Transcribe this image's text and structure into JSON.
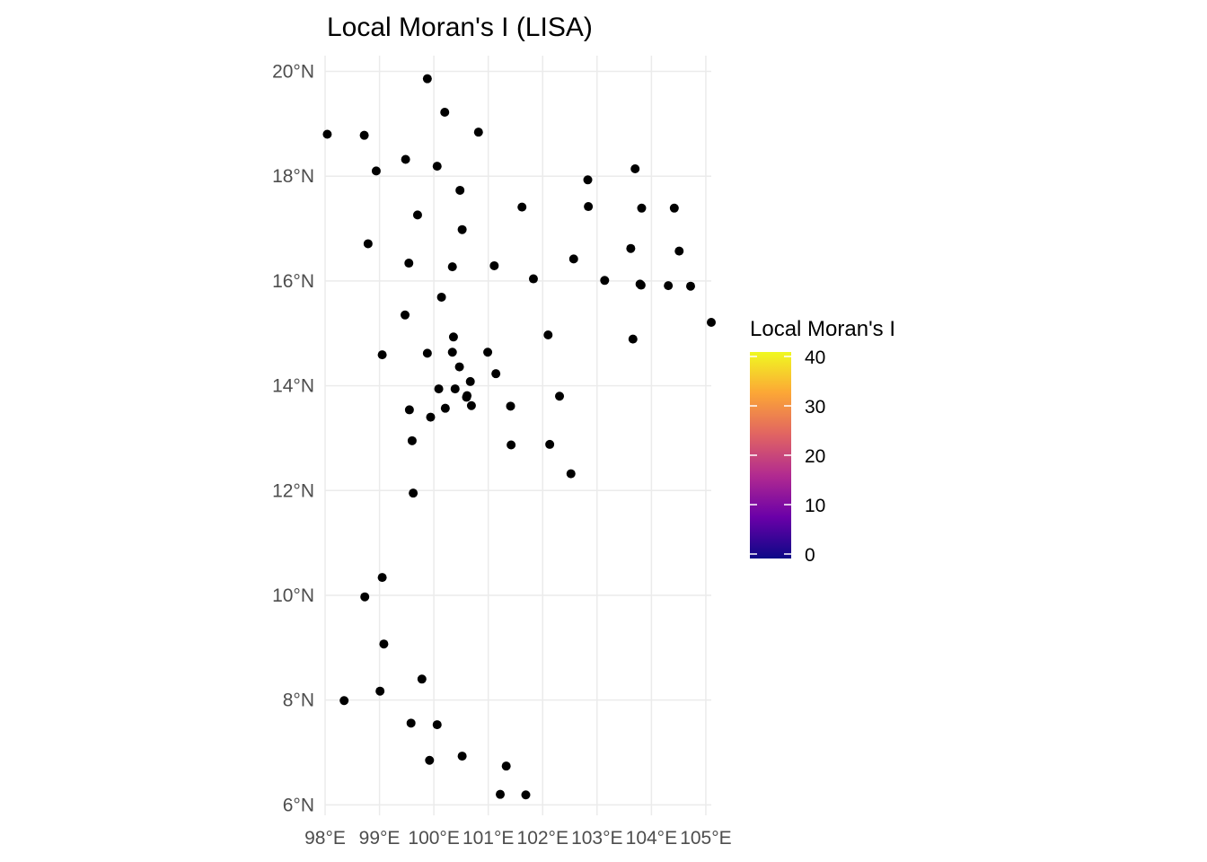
{
  "chart_data": {
    "type": "scatter",
    "title": "Local Moran's I (LISA)",
    "xlabel": "",
    "ylabel": "",
    "xlim": [
      98,
      105.1
    ],
    "ylim": [
      5.8,
      20.3
    ],
    "x_ticks": [
      98,
      99,
      100,
      101,
      102,
      103,
      104,
      105
    ],
    "x_tick_labels": [
      "98°E",
      "99°E",
      "100°E",
      "101°E",
      "102°E",
      "103°E",
      "104°E",
      "105°E"
    ],
    "y_ticks": [
      6,
      8,
      10,
      12,
      14,
      16,
      18,
      20
    ],
    "y_tick_labels": [
      "6°N",
      "8°N",
      "10°N",
      "12°N",
      "14°N",
      "16°N",
      "18°N",
      "20°N"
    ],
    "grid": true,
    "point_color": "#000000",
    "legend": {
      "title": "Local Moran's I",
      "position": "right",
      "min": 0,
      "max": 40,
      "ticks": [
        0,
        10,
        20,
        30,
        40
      ],
      "tick_labels": [
        "0",
        "10",
        "20",
        "30",
        "40"
      ],
      "colors": [
        "#0d0887",
        "#6a00a8",
        "#b12a90",
        "#e16462",
        "#fca636",
        "#f0f921"
      ]
    },
    "points": [
      {
        "x": 98.04,
        "y": 18.8
      },
      {
        "x": 98.72,
        "y": 18.78
      },
      {
        "x": 99.88,
        "y": 19.86
      },
      {
        "x": 100.2,
        "y": 19.22
      },
      {
        "x": 100.82,
        "y": 18.84
      },
      {
        "x": 98.94,
        "y": 18.1
      },
      {
        "x": 99.48,
        "y": 18.32
      },
      {
        "x": 100.06,
        "y": 18.19
      },
      {
        "x": 100.48,
        "y": 17.73
      },
      {
        "x": 99.7,
        "y": 17.26
      },
      {
        "x": 100.52,
        "y": 16.98
      },
      {
        "x": 98.79,
        "y": 16.71
      },
      {
        "x": 99.54,
        "y": 16.34
      },
      {
        "x": 100.34,
        "y": 16.27
      },
      {
        "x": 101.11,
        "y": 16.29
      },
      {
        "x": 101.62,
        "y": 17.41
      },
      {
        "x": 101.83,
        "y": 16.04
      },
      {
        "x": 102.57,
        "y": 16.42
      },
      {
        "x": 102.83,
        "y": 17.93
      },
      {
        "x": 102.84,
        "y": 17.42
      },
      {
        "x": 103.7,
        "y": 18.14
      },
      {
        "x": 103.82,
        "y": 17.39
      },
      {
        "x": 104.42,
        "y": 17.39
      },
      {
        "x": 103.62,
        "y": 16.62
      },
      {
        "x": 104.51,
        "y": 16.57
      },
      {
        "x": 103.14,
        "y": 16.01
      },
      {
        "x": 103.79,
        "y": 15.94
      },
      {
        "x": 103.81,
        "y": 15.92
      },
      {
        "x": 104.31,
        "y": 15.91
      },
      {
        "x": 104.72,
        "y": 15.9
      },
      {
        "x": 105.1,
        "y": 15.21
      },
      {
        "x": 103.66,
        "y": 14.89
      },
      {
        "x": 102.1,
        "y": 14.97
      },
      {
        "x": 100.14,
        "y": 15.69
      },
      {
        "x": 99.47,
        "y": 15.35
      },
      {
        "x": 99.05,
        "y": 14.59
      },
      {
        "x": 99.88,
        "y": 14.62
      },
      {
        "x": 100.36,
        "y": 14.93
      },
      {
        "x": 100.34,
        "y": 14.64
      },
      {
        "x": 100.99,
        "y": 14.64
      },
      {
        "x": 100.47,
        "y": 14.36
      },
      {
        "x": 101.14,
        "y": 14.23
      },
      {
        "x": 100.67,
        "y": 14.08
      },
      {
        "x": 100.09,
        "y": 13.94
      },
      {
        "x": 100.39,
        "y": 13.94
      },
      {
        "x": 100.61,
        "y": 13.81
      },
      {
        "x": 100.6,
        "y": 13.78
      },
      {
        "x": 100.69,
        "y": 13.62
      },
      {
        "x": 100.21,
        "y": 13.57
      },
      {
        "x": 99.55,
        "y": 13.54
      },
      {
        "x": 99.94,
        "y": 13.4
      },
      {
        "x": 101.41,
        "y": 13.61
      },
      {
        "x": 102.31,
        "y": 13.8
      },
      {
        "x": 99.6,
        "y": 12.95
      },
      {
        "x": 101.42,
        "y": 12.87
      },
      {
        "x": 102.13,
        "y": 12.88
      },
      {
        "x": 102.52,
        "y": 12.32
      },
      {
        "x": 99.62,
        "y": 11.95
      },
      {
        "x": 99.05,
        "y": 10.34
      },
      {
        "x": 98.73,
        "y": 9.97
      },
      {
        "x": 99.08,
        "y": 9.07
      },
      {
        "x": 99.78,
        "y": 8.4
      },
      {
        "x": 99.01,
        "y": 8.17
      },
      {
        "x": 98.35,
        "y": 7.99
      },
      {
        "x": 99.58,
        "y": 7.56
      },
      {
        "x": 100.06,
        "y": 7.53
      },
      {
        "x": 99.92,
        "y": 6.85
      },
      {
        "x": 100.52,
        "y": 6.93
      },
      {
        "x": 101.33,
        "y": 6.74
      },
      {
        "x": 101.22,
        "y": 6.2
      },
      {
        "x": 101.69,
        "y": 6.19
      }
    ]
  }
}
